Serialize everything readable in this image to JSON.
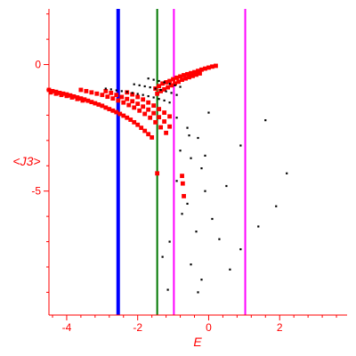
{
  "chart_data": {
    "type": "scatter",
    "title": "",
    "xlabel": "E",
    "ylabel": "<J3>",
    "xlim": [
      -4.5,
      3.9
    ],
    "ylim": [
      -9.9,
      2.2
    ],
    "xticks": [
      {
        "value": -4,
        "label": "-4"
      },
      {
        "value": -2,
        "label": "-2"
      },
      {
        "value": 0,
        "label": "0"
      },
      {
        "value": 2,
        "label": "2"
      }
    ],
    "yticks": [
      {
        "value": 0,
        "label": "0"
      },
      {
        "value": -5,
        "label": "-5"
      }
    ],
    "vertical_lines": [
      {
        "x": -2.55,
        "color": "#0000ff"
      },
      {
        "x": -1.45,
        "color": "#007700"
      },
      {
        "x": -0.98,
        "color": "#ff00ff"
      },
      {
        "x": 1.03,
        "color": "#ff00ff"
      }
    ],
    "series": [
      {
        "color": "#ff0000",
        "points": [
          [
            -4.5,
            -1.0
          ],
          [
            -4.4,
            -1.05
          ],
          [
            -4.3,
            -1.08
          ],
          [
            -4.2,
            -1.12
          ],
          [
            -4.1,
            -1.15
          ],
          [
            -4.0,
            -1.18
          ],
          [
            -3.9,
            -1.22
          ],
          [
            -3.8,
            -1.26
          ],
          [
            -3.7,
            -1.3
          ],
          [
            -3.6,
            -1.34
          ],
          [
            -3.5,
            -1.38
          ],
          [
            -3.4,
            -1.43
          ],
          [
            -3.3,
            -1.48
          ],
          [
            -3.2,
            -1.53
          ],
          [
            -3.1,
            -1.58
          ],
          [
            -3.0,
            -1.63
          ],
          [
            -2.9,
            -1.7
          ],
          [
            -2.8,
            -1.76
          ],
          [
            -2.7,
            -1.82
          ],
          [
            -2.6,
            -1.88
          ],
          [
            -2.5,
            -1.95
          ],
          [
            -2.4,
            -2.02
          ],
          [
            -2.3,
            -2.1
          ],
          [
            -2.2,
            -2.18
          ],
          [
            -2.1,
            -2.28
          ],
          [
            -2.0,
            -2.38
          ],
          [
            -1.9,
            -2.5
          ],
          [
            -1.8,
            -2.62
          ],
          [
            -1.7,
            -2.75
          ],
          [
            -1.6,
            -2.88
          ],
          [
            -4.45,
            -1.1
          ],
          [
            -4.3,
            -1.15
          ],
          [
            -4.15,
            -1.2
          ],
          [
            -4.0,
            -1.24
          ],
          [
            -3.85,
            -1.3
          ],
          [
            -3.7,
            -1.36
          ],
          [
            -3.55,
            -1.42
          ],
          [
            -3.6,
            -1.0
          ],
          [
            -3.45,
            -1.05
          ],
          [
            -3.3,
            -1.1
          ],
          [
            -3.15,
            -1.15
          ],
          [
            -3.0,
            -1.2
          ],
          [
            -2.85,
            -1.27
          ],
          [
            -2.7,
            -1.34
          ],
          [
            -2.55,
            -1.42
          ],
          [
            -2.4,
            -1.5
          ],
          [
            -2.25,
            -1.6
          ],
          [
            -2.1,
            -1.7
          ],
          [
            -1.95,
            -1.82
          ],
          [
            -1.8,
            -1.95
          ],
          [
            -1.65,
            -2.1
          ],
          [
            -1.5,
            -2.28
          ],
          [
            -1.35,
            -2.48
          ],
          [
            -1.2,
            -2.7
          ],
          [
            -2.9,
            -1.05
          ],
          [
            -2.75,
            -1.12
          ],
          [
            -2.6,
            -1.2
          ],
          [
            -2.45,
            -1.28
          ],
          [
            -2.3,
            -1.36
          ],
          [
            -2.15,
            -1.45
          ],
          [
            -2.0,
            -1.55
          ],
          [
            -1.85,
            -1.66
          ],
          [
            -1.7,
            -1.78
          ],
          [
            -1.55,
            -1.92
          ],
          [
            -1.4,
            -2.08
          ],
          [
            -1.25,
            -2.25
          ],
          [
            -1.1,
            -2.45
          ],
          [
            -2.3,
            -1.1
          ],
          [
            -2.15,
            -1.18
          ],
          [
            -2.0,
            -1.28
          ],
          [
            -1.85,
            -1.38
          ],
          [
            -1.7,
            -1.5
          ],
          [
            -1.55,
            -1.62
          ],
          [
            -1.4,
            -1.76
          ],
          [
            -1.25,
            -1.9
          ],
          [
            -1.1,
            -2.05
          ],
          [
            -1.5,
            -0.95
          ],
          [
            -1.4,
            -0.85
          ],
          [
            -1.3,
            -0.75
          ],
          [
            -1.2,
            -0.7
          ],
          [
            -1.1,
            -0.65
          ],
          [
            -1.0,
            -0.58
          ],
          [
            -0.9,
            -0.52
          ],
          [
            -0.8,
            -0.47
          ],
          [
            -0.7,
            -0.42
          ],
          [
            -0.6,
            -0.38
          ],
          [
            -0.5,
            -0.34
          ],
          [
            -0.4,
            -0.3
          ],
          [
            -0.3,
            -0.25
          ],
          [
            -0.2,
            -0.2
          ],
          [
            -0.1,
            -0.16
          ],
          [
            0.0,
            -0.12
          ],
          [
            0.1,
            -0.08
          ],
          [
            0.2,
            -0.05
          ],
          [
            -1.45,
            -1.15
          ],
          [
            -1.35,
            -1.05
          ],
          [
            -1.25,
            -0.98
          ],
          [
            -1.15,
            -0.9
          ],
          [
            -1.05,
            -0.82
          ],
          [
            -0.95,
            -0.75
          ],
          [
            -0.85,
            -0.68
          ],
          [
            -0.75,
            -0.6
          ],
          [
            -0.65,
            -0.55
          ],
          [
            -0.55,
            -0.5
          ],
          [
            -0.45,
            -0.45
          ],
          [
            -0.35,
            -0.4
          ],
          [
            -0.25,
            -0.35
          ],
          [
            -1.45,
            -4.3
          ],
          [
            -0.75,
            -4.4
          ],
          [
            -0.73,
            -4.7
          ],
          [
            -0.7,
            -5.2
          ]
        ]
      },
      {
        "color": "#000000",
        "points": [
          [
            -2.9,
            -0.95
          ],
          [
            -2.75,
            -0.98
          ],
          [
            -2.6,
            -1.02
          ],
          [
            -2.45,
            -1.05
          ],
          [
            -2.3,
            -1.08
          ],
          [
            -2.15,
            -1.12
          ],
          [
            -2.0,
            -1.16
          ],
          [
            -1.85,
            -1.2
          ],
          [
            -1.7,
            -1.25
          ],
          [
            -1.55,
            -1.3
          ],
          [
            -1.4,
            -1.36
          ],
          [
            -1.25,
            -1.42
          ],
          [
            -1.1,
            -1.5
          ],
          [
            -2.1,
            -0.78
          ],
          [
            -1.95,
            -0.82
          ],
          [
            -1.8,
            -0.86
          ],
          [
            -1.65,
            -0.9
          ],
          [
            -1.5,
            -0.95
          ],
          [
            -1.35,
            -1.0
          ],
          [
            -1.2,
            -1.06
          ],
          [
            -1.05,
            -1.12
          ],
          [
            -0.9,
            -1.2
          ],
          [
            -1.7,
            -0.55
          ],
          [
            -1.55,
            -0.6
          ],
          [
            -1.4,
            -0.65
          ],
          [
            -1.25,
            -0.7
          ],
          [
            -1.1,
            -0.76
          ],
          [
            -0.95,
            -0.82
          ],
          [
            -0.8,
            -0.88
          ],
          [
            -0.9,
            -2.1
          ],
          [
            -0.6,
            -2.5
          ],
          [
            -0.3,
            -2.9
          ],
          [
            -0.8,
            -3.4
          ],
          [
            -0.5,
            -3.7
          ],
          [
            -0.2,
            -4.1
          ],
          [
            -0.9,
            -4.6
          ],
          [
            -0.1,
            -5.0
          ],
          [
            -0.6,
            -5.5
          ],
          [
            0.1,
            -6.1
          ],
          [
            -0.35,
            -6.6
          ],
          [
            -1.1,
            -7.0
          ],
          [
            -1.3,
            -7.6
          ],
          [
            0.3,
            -6.9
          ],
          [
            0.9,
            -7.3
          ],
          [
            -0.5,
            -7.9
          ],
          [
            0.6,
            -8.1
          ],
          [
            -1.15,
            -8.9
          ],
          [
            -0.3,
            -9.0
          ],
          [
            1.4,
            -6.4
          ],
          [
            1.9,
            -5.6
          ],
          [
            2.2,
            -4.3
          ],
          [
            0.9,
            -3.2
          ],
          [
            1.6,
            -2.2
          ],
          [
            0.0,
            -1.9
          ],
          [
            -0.55,
            -2.8
          ],
          [
            -0.1,
            -3.6
          ],
          [
            0.5,
            -4.8
          ],
          [
            -0.75,
            -5.9
          ],
          [
            -0.2,
            -8.5
          ]
        ]
      }
    ]
  }
}
